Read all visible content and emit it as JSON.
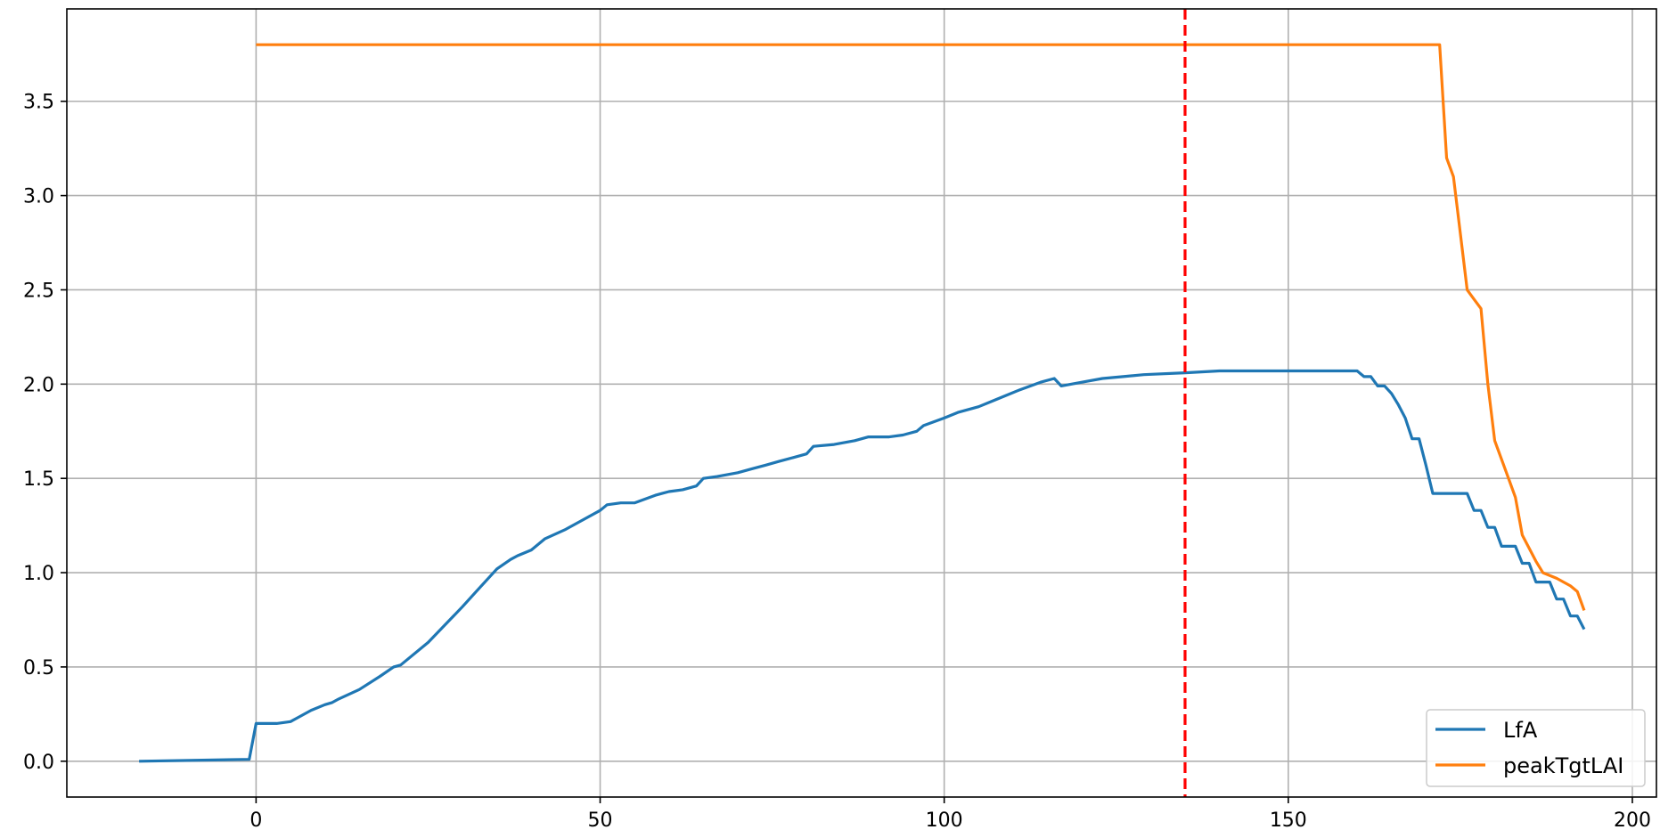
{
  "chart_data": {
    "type": "line",
    "title": "",
    "xlabel": "",
    "ylabel": "",
    "xlim": [
      -27.5,
      203.5
    ],
    "ylim": [
      -0.19,
      3.99
    ],
    "xticks": [
      0,
      50,
      100,
      150,
      200
    ],
    "yticks": [
      0.0,
      0.5,
      1.0,
      1.5,
      2.0,
      2.5,
      3.0,
      3.5
    ],
    "xtick_labels": [
      "0",
      "50",
      "100",
      "150",
      "200"
    ],
    "ytick_labels": [
      "0.0",
      "0.5",
      "1.0",
      "1.5",
      "2.0",
      "2.5",
      "3.0",
      "3.5"
    ],
    "grid": true,
    "legend_position": "lower-right",
    "vline": {
      "x": 135,
      "color": "#ff0000",
      "style": "dashed"
    },
    "series": [
      {
        "name": "LfA",
        "color": "#1f77b4",
        "points": [
          [
            -17,
            0.0
          ],
          [
            -1,
            0.01
          ],
          [
            0,
            0.2
          ],
          [
            3,
            0.2
          ],
          [
            5,
            0.21
          ],
          [
            6,
            0.23
          ],
          [
            8,
            0.27
          ],
          [
            10,
            0.3
          ],
          [
            11,
            0.31
          ],
          [
            12,
            0.33
          ],
          [
            15,
            0.38
          ],
          [
            18,
            0.45
          ],
          [
            20,
            0.5
          ],
          [
            21,
            0.51
          ],
          [
            25,
            0.63
          ],
          [
            30,
            0.82
          ],
          [
            32,
            0.9
          ],
          [
            35,
            1.02
          ],
          [
            37,
            1.07
          ],
          [
            38,
            1.09
          ],
          [
            40,
            1.12
          ],
          [
            42,
            1.18
          ],
          [
            45,
            1.23
          ],
          [
            47,
            1.27
          ],
          [
            50,
            1.33
          ],
          [
            51,
            1.36
          ],
          [
            53,
            1.37
          ],
          [
            55,
            1.37
          ],
          [
            58,
            1.41
          ],
          [
            59,
            1.42
          ],
          [
            60,
            1.43
          ],
          [
            62,
            1.44
          ],
          [
            64,
            1.46
          ],
          [
            65,
            1.5
          ],
          [
            67,
            1.51
          ],
          [
            70,
            1.53
          ],
          [
            72,
            1.55
          ],
          [
            74,
            1.57
          ],
          [
            76,
            1.59
          ],
          [
            78,
            1.61
          ],
          [
            80,
            1.63
          ],
          [
            81,
            1.67
          ],
          [
            84,
            1.68
          ],
          [
            87,
            1.7
          ],
          [
            89,
            1.72
          ],
          [
            92,
            1.72
          ],
          [
            94,
            1.73
          ],
          [
            96,
            1.75
          ],
          [
            97,
            1.78
          ],
          [
            100,
            1.82
          ],
          [
            102,
            1.85
          ],
          [
            105,
            1.88
          ],
          [
            107,
            1.91
          ],
          [
            109,
            1.94
          ],
          [
            111,
            1.97
          ],
          [
            114,
            2.01
          ],
          [
            116,
            2.03
          ],
          [
            117,
            1.99
          ],
          [
            120,
            2.01
          ],
          [
            123,
            2.03
          ],
          [
            126,
            2.04
          ],
          [
            129,
            2.05
          ],
          [
            135,
            2.06
          ],
          [
            140,
            2.07
          ],
          [
            160,
            2.07
          ],
          [
            161,
            2.04
          ],
          [
            162,
            2.04
          ],
          [
            163,
            1.99
          ],
          [
            164,
            1.99
          ],
          [
            165,
            1.95
          ],
          [
            166,
            1.89
          ],
          [
            167,
            1.82
          ],
          [
            168,
            1.71
          ],
          [
            169,
            1.71
          ],
          [
            170,
            1.57
          ],
          [
            171,
            1.42
          ],
          [
            174,
            1.42
          ],
          [
            176,
            1.42
          ],
          [
            177,
            1.33
          ],
          [
            178,
            1.33
          ],
          [
            179,
            1.24
          ],
          [
            180,
            1.24
          ],
          [
            181,
            1.14
          ],
          [
            183,
            1.14
          ],
          [
            184,
            1.05
          ],
          [
            185,
            1.05
          ],
          [
            186,
            0.95
          ],
          [
            188,
            0.95
          ],
          [
            189,
            0.86
          ],
          [
            190,
            0.86
          ],
          [
            191,
            0.77
          ],
          [
            192,
            0.77
          ],
          [
            193,
            0.7
          ]
        ]
      },
      {
        "name": "peakTgtLAI",
        "color": "#ff7f0e",
        "points": [
          [
            0,
            3.8
          ],
          [
            172,
            3.8
          ],
          [
            173,
            3.2
          ],
          [
            174,
            3.1
          ],
          [
            175,
            2.8
          ],
          [
            176,
            2.5
          ],
          [
            177,
            2.45
          ],
          [
            178,
            2.4
          ],
          [
            179,
            2.0
          ],
          [
            180,
            1.7
          ],
          [
            182,
            1.5
          ],
          [
            183,
            1.4
          ],
          [
            184,
            1.2
          ],
          [
            185,
            1.13
          ],
          [
            186,
            1.06
          ],
          [
            187,
            1.0
          ],
          [
            189,
            0.97
          ],
          [
            191,
            0.93
          ],
          [
            192,
            0.9
          ],
          [
            193,
            0.8
          ]
        ]
      }
    ]
  }
}
